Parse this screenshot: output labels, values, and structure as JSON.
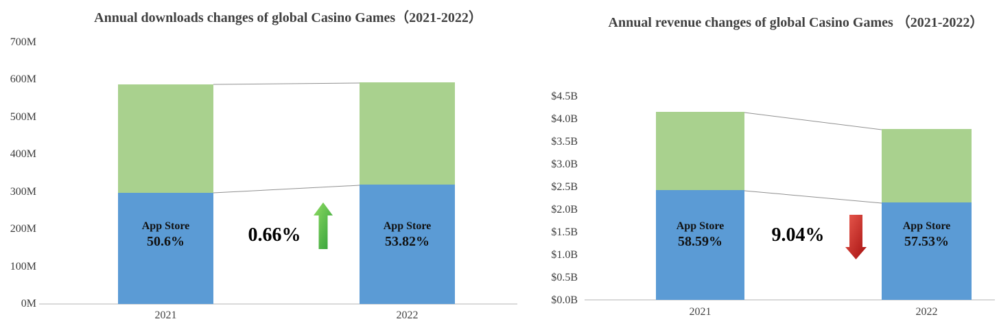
{
  "left_chart": {
    "title": "Annual downloads changes of global Casino Games（2021-2022）",
    "y_axis_ticks": [
      "700M",
      "600M",
      "500M",
      "400M",
      "300M",
      "200M",
      "100M",
      "0M"
    ],
    "x_axis_labels": [
      "2021",
      "2022"
    ],
    "bar_2021_label": {
      "line1": "App Store",
      "line2": "50.6%"
    },
    "bar_2022_label": {
      "line1": "App Store",
      "line2": "53.82%"
    },
    "change_label": "0.66%",
    "change_direction": "up"
  },
  "right_chart": {
    "title": "Annual revenue changes of global Casino Games （2021-2022）",
    "y_axis_ticks": [
      "$4.5B",
      "$4.0B",
      "$3.5B",
      "$3.0B",
      "$2.5B",
      "$2.0B",
      "$1.5B",
      "$1.0B",
      "$0.5B",
      "$0.0B"
    ],
    "x_axis_labels": [
      "2021",
      "2022"
    ],
    "bar_2021_label": {
      "line1": "App Store",
      "line2": "58.59%"
    },
    "bar_2022_label": {
      "line1": "App Store",
      "line2": "57.53%"
    },
    "change_label": "9.04%",
    "change_direction": "down"
  },
  "colors": {
    "app_store_bar": "#5b9bd5",
    "other_segment_bar": "#a9d18e",
    "up_arrow": "#3fae49",
    "down_arrow": "#c00000",
    "title_text": "#404040",
    "axis_text": "#3b3b3b",
    "axis_line": "#d9d9d9",
    "connector_line": "#8f8f8f"
  },
  "chart_data": [
    {
      "type": "bar",
      "stacked": true,
      "title": "Annual downloads changes of global Casino Games（2021-2022）",
      "categories": [
        "2021",
        "2022"
      ],
      "unit": "M downloads",
      "series": [
        {
          "name": "App Store (blue segment)",
          "values": [
            298,
            319
          ],
          "share_labels": [
            "50.6%",
            "53.82%"
          ]
        },
        {
          "name": "Other stores (unlabeled green segment)",
          "values": [
            291,
            274
          ]
        }
      ],
      "totals": [
        589,
        593
      ],
      "annotation": {
        "text": "0.66%",
        "direction": "up"
      },
      "ylim": [
        0,
        700
      ],
      "ytick_step": 100,
      "legend": "none",
      "grid": "off"
    },
    {
      "type": "bar",
      "stacked": true,
      "title": "Annual revenue changes of global Casino Games （2021-2022）",
      "categories": [
        "2021",
        "2022"
      ],
      "unit": "$B revenue",
      "series": [
        {
          "name": "App Store (blue segment)",
          "values": [
            2.44,
            2.18
          ],
          "share_labels": [
            "58.59%",
            "57.53%"
          ]
        },
        {
          "name": "Other stores (unlabeled green segment)",
          "values": [
            1.73,
            1.61
          ]
        }
      ],
      "totals": [
        4.17,
        3.79
      ],
      "annotation": {
        "text": "9.04%",
        "direction": "down"
      },
      "ylim": [
        0,
        4.5
      ],
      "ytick_step": 0.5,
      "legend": "none",
      "grid": "off"
    }
  ]
}
